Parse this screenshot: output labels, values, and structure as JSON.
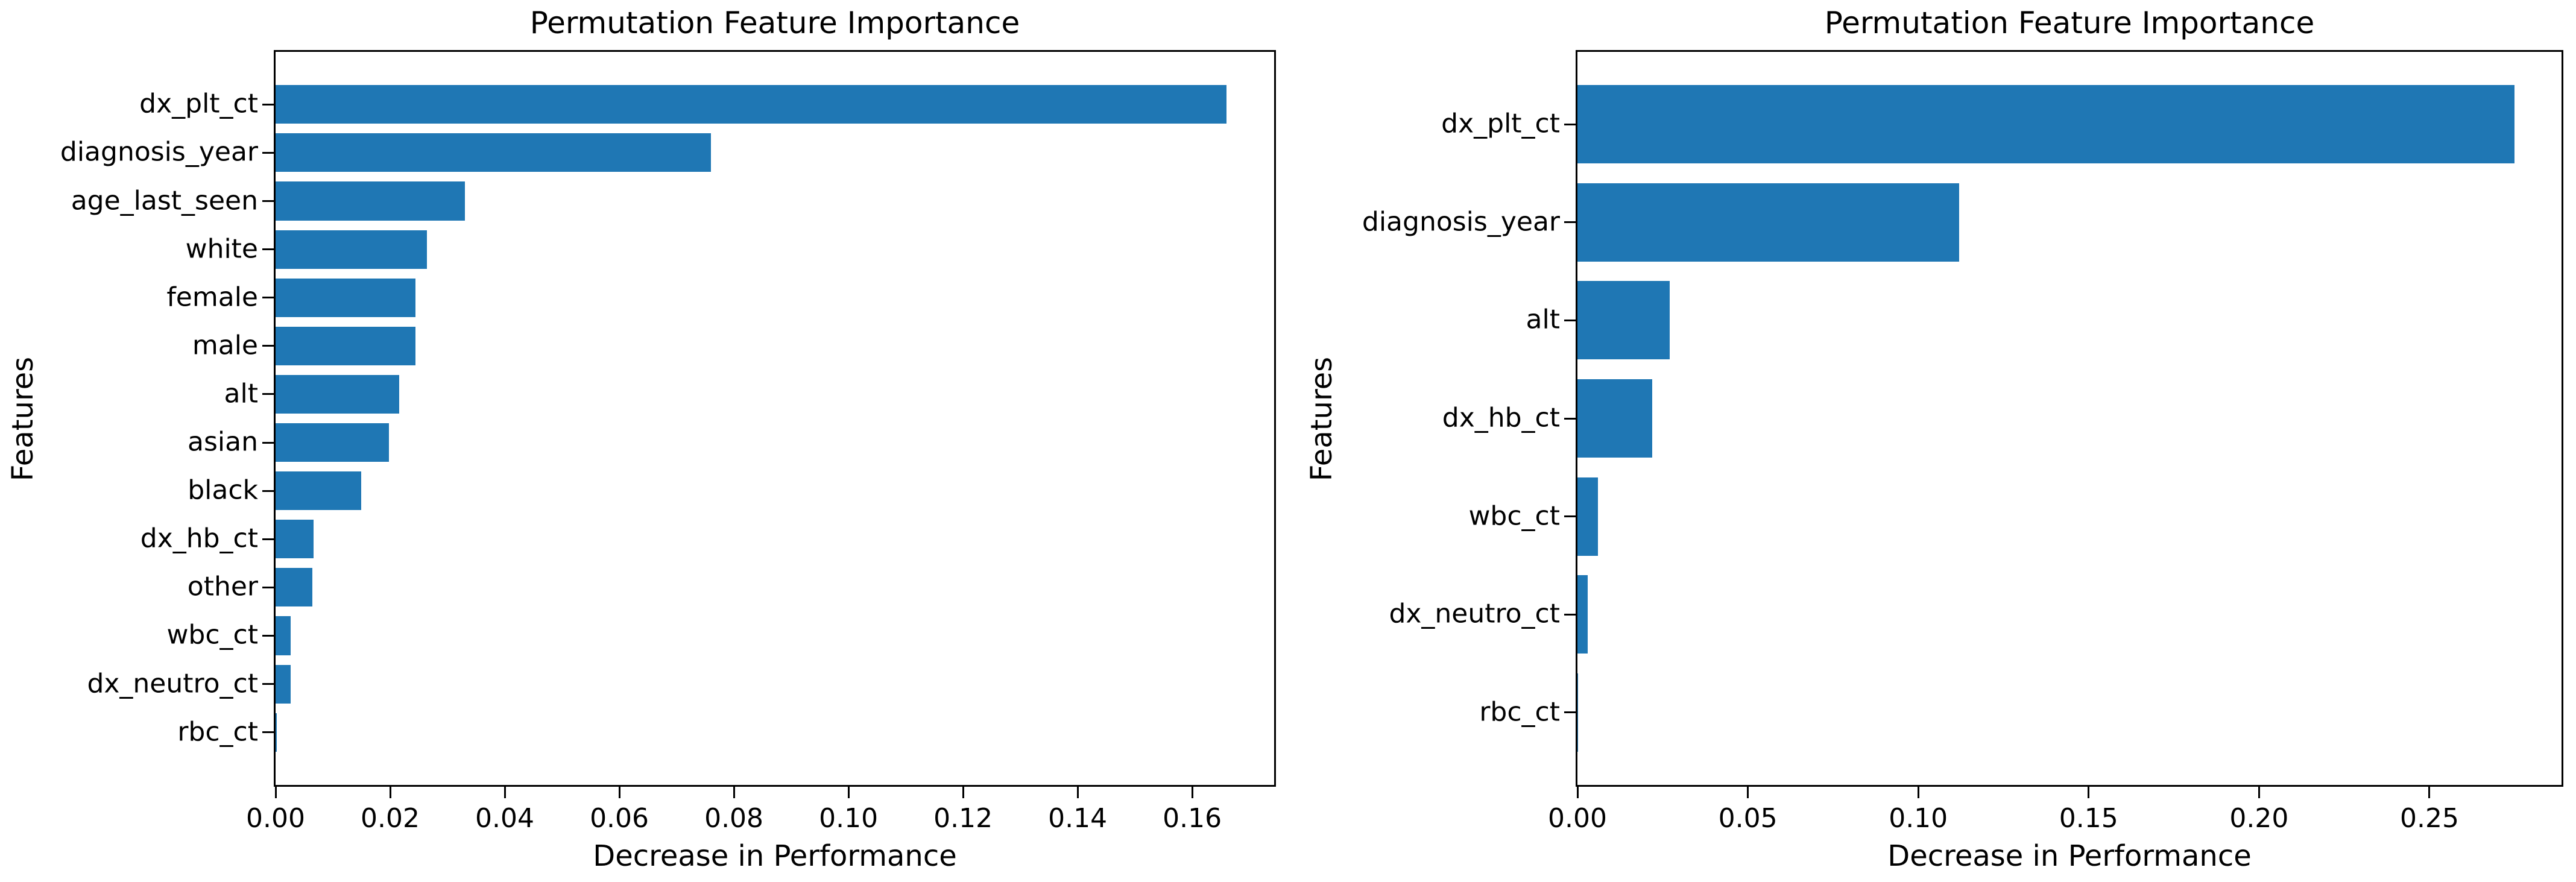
{
  "style": {
    "background": "#ffffff",
    "bar_color": "#1f77b4",
    "spine_color": "#000000",
    "text_color": "#000000"
  },
  "chart_data": [
    {
      "type": "bar",
      "orientation": "horizontal",
      "title": "Permutation Feature Importance",
      "xlabel": "Decrease in Performance",
      "ylabel": "Features",
      "grid": false,
      "legend": null,
      "categories": [
        "dx_plt_ct",
        "diagnosis_year",
        "age_last_seen",
        "white",
        "female",
        "male",
        "alt",
        "asian",
        "black",
        "dx_hb_ct",
        "other",
        "wbc_ct",
        "dx_neutro_ct",
        "rbc_ct"
      ],
      "values": [
        0.166,
        0.076,
        0.033,
        0.0264,
        0.0244,
        0.0244,
        0.0216,
        0.0198,
        0.0149,
        0.0066,
        0.0064,
        0.0026,
        0.0026,
        0.0002
      ],
      "xlim": [
        0,
        0.1743
      ],
      "xticks": [
        0.0,
        0.02,
        0.04,
        0.06,
        0.08,
        0.1,
        0.12,
        0.14,
        0.16
      ],
      "xtick_labels": [
        "0.00",
        "0.02",
        "0.04",
        "0.06",
        "0.08",
        "0.10",
        "0.12",
        "0.14",
        "0.16"
      ]
    },
    {
      "type": "bar",
      "orientation": "horizontal",
      "title": "Permutation Feature Importance",
      "xlabel": "Decrease in Performance",
      "ylabel": "Features",
      "grid": false,
      "legend": null,
      "categories": [
        "dx_plt_ct",
        "diagnosis_year",
        "alt",
        "dx_hb_ct",
        "wbc_ct",
        "dx_neutro_ct",
        "rbc_ct"
      ],
      "values": [
        0.275,
        0.112,
        0.027,
        0.022,
        0.006,
        0.003,
        0.0002
      ],
      "xlim": [
        0,
        0.28875
      ],
      "xticks": [
        0.0,
        0.05,
        0.1,
        0.15,
        0.2,
        0.25
      ],
      "xtick_labels": [
        "0.00",
        "0.05",
        "0.10",
        "0.15",
        "0.20",
        "0.25"
      ]
    }
  ]
}
